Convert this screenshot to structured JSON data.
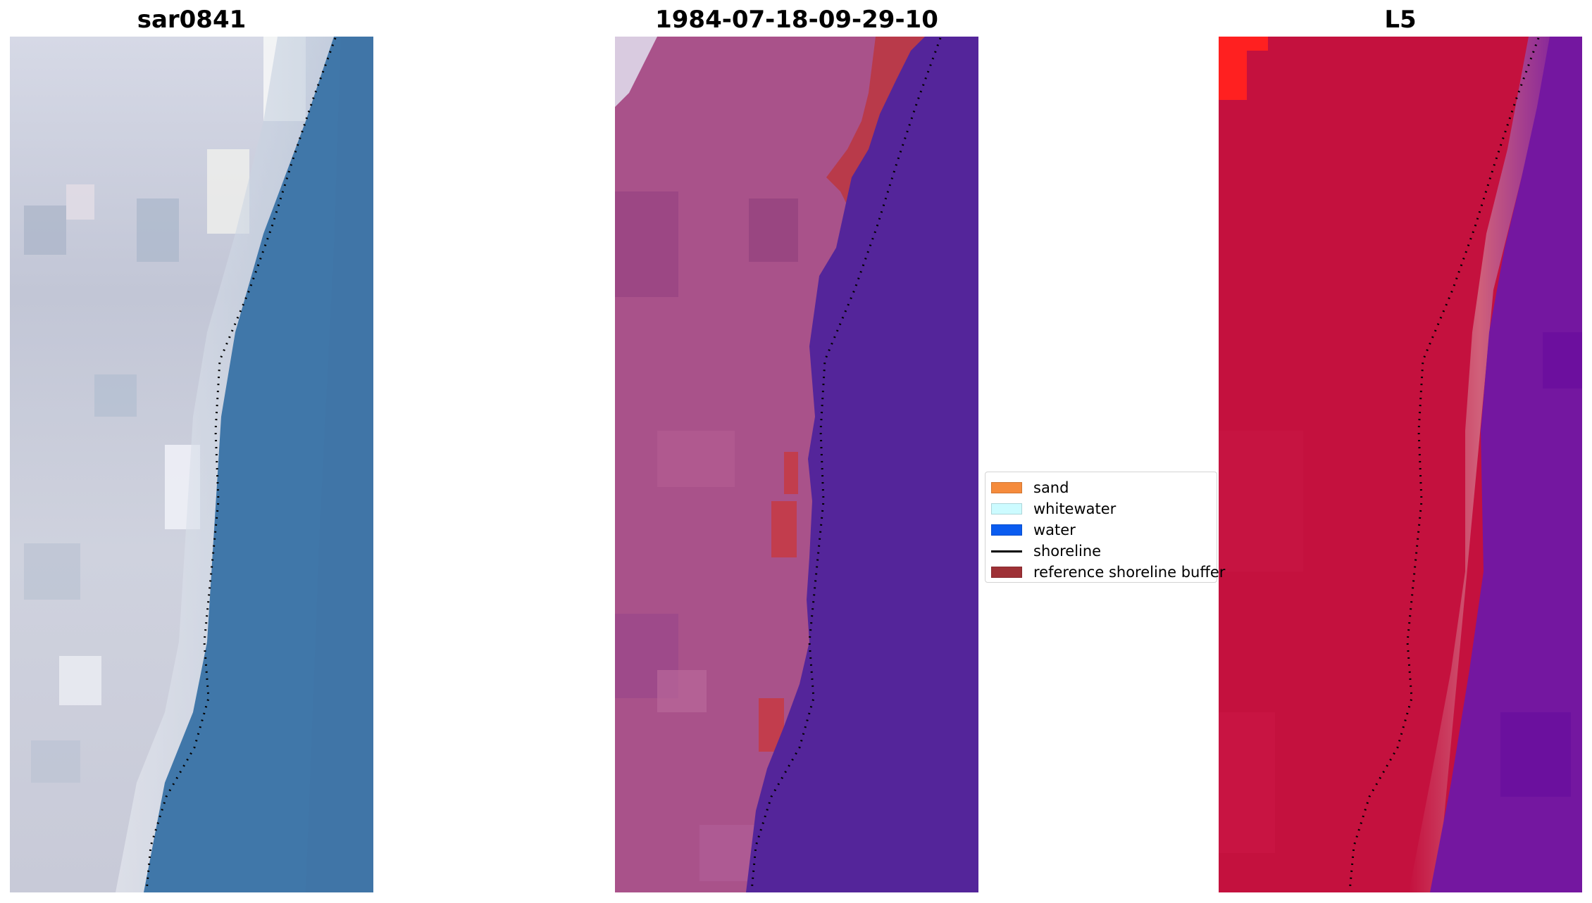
{
  "panels": [
    {
      "title": "sar0841",
      "icon": "rgb-image"
    },
    {
      "title": "1984-07-18-09-29-10",
      "icon": "classified-image"
    },
    {
      "title": "L5",
      "icon": "index-image"
    }
  ],
  "legend": {
    "items": [
      {
        "label": "sand",
        "color": "#f58b3c"
      },
      {
        "label": "whitewater",
        "color": "#ccfbff"
      },
      {
        "label": "water",
        "color": "#0a5cf0"
      },
      {
        "label": "shoreline",
        "color": "#000000"
      },
      {
        "label": "reference shoreline buffer",
        "color": "#9e3136"
      }
    ]
  },
  "colors": {
    "sand_land": "#c9cbd8",
    "sea_rgb": "#4077a9",
    "land_classified": "#a9528a",
    "sea_classified": "#54259a",
    "buffer": "#b93a4a",
    "land_index": "#c4113e",
    "sea_index": "#7417a0"
  }
}
